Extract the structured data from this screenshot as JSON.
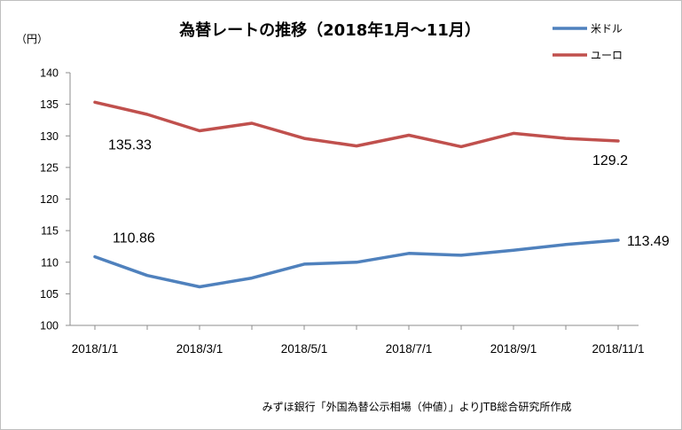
{
  "chart_data": {
    "type": "line",
    "title": "為替レートの推移（2018年1月～11月）",
    "ylabel": "（円）",
    "source": "みずほ銀行「外国為替公示相場（仲値）」よりJTB総合研究所作成",
    "ylim": [
      100,
      140
    ],
    "yticks": [
      100,
      105,
      110,
      115,
      120,
      125,
      130,
      135,
      140
    ],
    "x": [
      "2018/1/1",
      "2018/2/1",
      "2018/3/1",
      "2018/4/1",
      "2018/5/1",
      "2018/6/1",
      "2018/7/1",
      "2018/8/1",
      "2018/9/1",
      "2018/10/1",
      "2018/11/1"
    ],
    "xtick_labels": [
      "2018/1/1",
      "2018/3/1",
      "2018/5/1",
      "2018/7/1",
      "2018/9/1",
      "2018/11/1"
    ],
    "grid": false,
    "legend_position": "top-right",
    "series": [
      {
        "name": "米ドル",
        "color": "#4f81bd",
        "values": [
          110.86,
          107.9,
          106.1,
          107.5,
          109.7,
          110.0,
          111.4,
          111.1,
          111.9,
          112.8,
          113.49
        ],
        "labels": [
          {
            "index": 0,
            "text": "110.86"
          },
          {
            "index": 10,
            "text": "113.49"
          }
        ]
      },
      {
        "name": "ユーロ",
        "color": "#c0504d",
        "values": [
          135.33,
          133.4,
          130.8,
          132.0,
          129.6,
          128.4,
          130.1,
          128.3,
          130.4,
          129.6,
          129.2
        ],
        "labels": [
          {
            "index": 0,
            "text": "135.33"
          },
          {
            "index": 10,
            "text": "129.2"
          }
        ]
      }
    ]
  }
}
